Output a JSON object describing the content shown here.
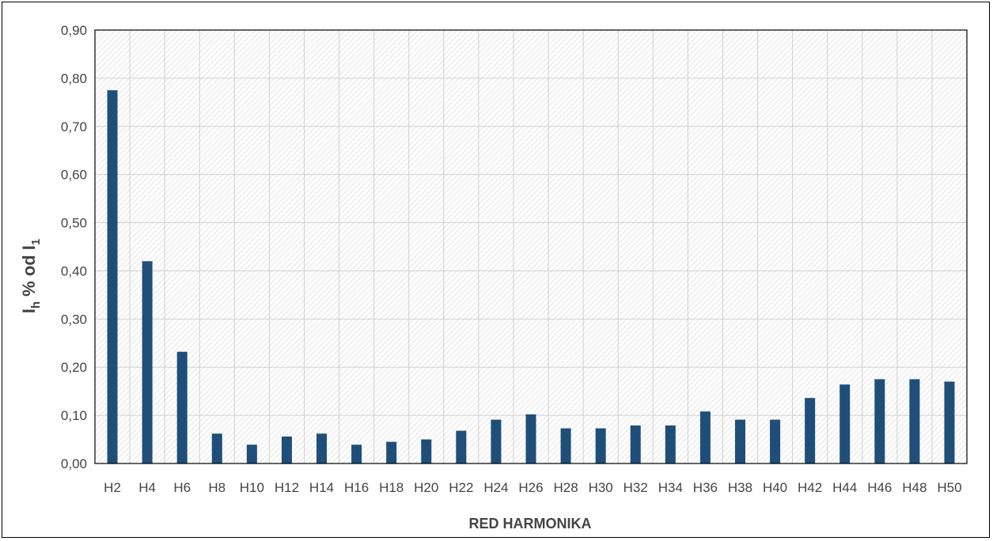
{
  "chart_data": {
    "type": "bar",
    "title": "",
    "xlabel": "RED HARMONIKA",
    "ylabel": {
      "main": "I",
      "sub1": "h",
      "mid": " % od I",
      "sub2": "1"
    },
    "ylim": [
      0,
      0.9
    ],
    "ytick_step": 0.1,
    "grid": true,
    "legend": "none",
    "bar_color": "#1f4e79",
    "categories": [
      "H2",
      "H4",
      "H6",
      "H8",
      "H10",
      "H12",
      "H14",
      "H16",
      "H18",
      "H20",
      "H22",
      "H24",
      "H26",
      "H28",
      "H30",
      "H32",
      "H34",
      "H36",
      "H38",
      "H40",
      "H42",
      "H44",
      "H46",
      "H48",
      "H50"
    ],
    "values": [
      0.775,
      0.42,
      0.232,
      0.062,
      0.039,
      0.056,
      0.062,
      0.039,
      0.045,
      0.05,
      0.068,
      0.091,
      0.102,
      0.073,
      0.073,
      0.079,
      0.079,
      0.108,
      0.091,
      0.091,
      0.136,
      0.164,
      0.175,
      0.175,
      0.17
    ],
    "ytick_labels": [
      "0,00",
      "0,10",
      "0,20",
      "0,30",
      "0,40",
      "0,50",
      "0,60",
      "0,70",
      "0,80",
      "0,90"
    ]
  }
}
